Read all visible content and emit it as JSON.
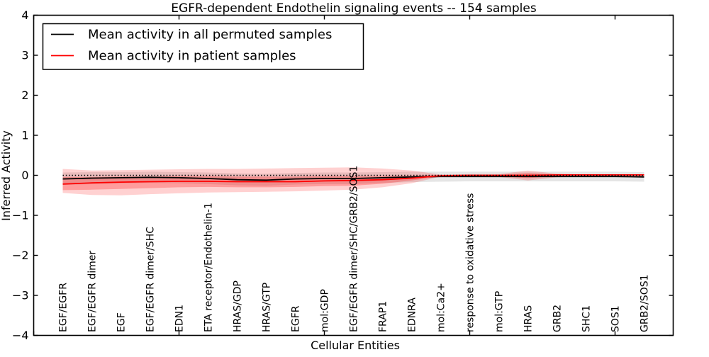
{
  "figure": {
    "background": "#ffffff",
    "frame_color": "#000000"
  },
  "chart_data": {
    "type": "line",
    "title": "EGFR-dependent Endothelin signaling events -- 154 samples",
    "xlabel": "Cellular Entities",
    "ylabel": "Inferred Activity",
    "ylim": [
      -4,
      4
    ],
    "xlim": [
      0,
      22
    ],
    "yticks": [
      4,
      3,
      2,
      1,
      0,
      -1,
      -2,
      -3,
      -4
    ],
    "ytick_labels": [
      "4",
      "3",
      "2",
      "1",
      "0",
      "−1",
      "−2",
      "−3",
      "−4"
    ],
    "xticks": [
      0,
      5,
      10,
      15,
      20
    ],
    "grid": false,
    "legend_position": "upper left",
    "x_positions": [
      1,
      2,
      3,
      4,
      5,
      6,
      7,
      8,
      9,
      10,
      11,
      12,
      13,
      14,
      15,
      16,
      17,
      18,
      19,
      20,
      21
    ],
    "categories": [
      "EGF/EGFR",
      "EGF/EGFR dimer",
      "EGF",
      "EGF/EGFR dimer/SHC",
      "EDN1",
      "ETA receptor/Endothelin-1",
      "HRAS/GDP",
      "HRAS/GTP",
      "EGFR",
      "mol:GDP",
      "EGF/EGFR dimer/SHC/GRB2/SOS1",
      "FRAP1",
      "EDNRA",
      "mol:Ca2+",
      "response to oxidative stress",
      "mol:GTP",
      "HRAS",
      "GRB2",
      "SHC1",
      "SOS1",
      "GRB2/SOS1"
    ],
    "zero_line": {
      "y": 0,
      "color": "#000000",
      "style": "dotted"
    },
    "series": [
      {
        "name": "Mean activity in all permuted samples",
        "color": "#000000",
        "values": [
          -0.09,
          -0.07,
          -0.06,
          -0.05,
          -0.06,
          -0.08,
          -0.11,
          -0.12,
          -0.09,
          -0.08,
          -0.08,
          -0.06,
          -0.04,
          -0.03,
          -0.03,
          -0.03,
          -0.03,
          -0.03,
          -0.03,
          -0.03,
          -0.04
        ]
      },
      {
        "name": "Mean activity in patient samples",
        "color": "#ff0000",
        "values": [
          -0.22,
          -0.19,
          -0.17,
          -0.16,
          -0.15,
          -0.15,
          -0.16,
          -0.16,
          -0.16,
          -0.14,
          -0.13,
          -0.11,
          -0.07,
          -0.01,
          0.0,
          0.0,
          0.0,
          0.01,
          0.01,
          0.01,
          0.01
        ]
      }
    ],
    "bands": [
      {
        "name": "permuted-samples-band",
        "color": "rgba(0,0,0,0.10)",
        "upper": [
          0.07,
          0.08,
          0.08,
          0.09,
          0.08,
          0.07,
          0.05,
          0.04,
          0.06,
          0.07,
          0.07,
          0.08,
          0.09,
          0.09,
          0.09,
          0.09,
          0.09,
          0.09,
          0.09,
          0.09,
          0.08
        ],
        "lower": [
          -0.24,
          -0.22,
          -0.2,
          -0.19,
          -0.2,
          -0.22,
          -0.25,
          -0.26,
          -0.23,
          -0.22,
          -0.22,
          -0.19,
          -0.17,
          -0.16,
          -0.15,
          -0.15,
          -0.15,
          -0.15,
          -0.15,
          -0.15,
          -0.16
        ]
      },
      {
        "name": "patient-samples-outer-band",
        "color": "rgba(255,0,0,0.18)",
        "upper": [
          0.16,
          0.12,
          0.13,
          0.14,
          0.15,
          0.16,
          0.16,
          0.17,
          0.18,
          0.19,
          0.2,
          0.17,
          0.12,
          0.02,
          0.03,
          0.03,
          0.12,
          0.04,
          0.02,
          0.02,
          0.02
        ],
        "lower": [
          -0.44,
          -0.49,
          -0.5,
          -0.47,
          -0.45,
          -0.43,
          -0.42,
          -0.41,
          -0.4,
          -0.38,
          -0.36,
          -0.3,
          -0.2,
          -0.03,
          -0.04,
          -0.04,
          -0.13,
          -0.05,
          -0.03,
          -0.03,
          -0.03
        ]
      },
      {
        "name": "patient-samples-inner-band",
        "color": "rgba(255,0,0,0.25)",
        "upper": [
          -0.04,
          -0.04,
          -0.03,
          -0.03,
          -0.02,
          -0.02,
          -0.03,
          -0.03,
          -0.03,
          -0.02,
          -0.02,
          -0.02,
          -0.01,
          0.01,
          0.01,
          0.01,
          0.06,
          0.02,
          0.01,
          0.01,
          0.01
        ],
        "lower": [
          -0.37,
          -0.36,
          -0.34,
          -0.32,
          -0.3,
          -0.29,
          -0.3,
          -0.3,
          -0.29,
          -0.27,
          -0.26,
          -0.21,
          -0.13,
          -0.03,
          -0.02,
          -0.02,
          -0.07,
          -0.02,
          -0.02,
          -0.02,
          -0.02
        ]
      }
    ]
  }
}
